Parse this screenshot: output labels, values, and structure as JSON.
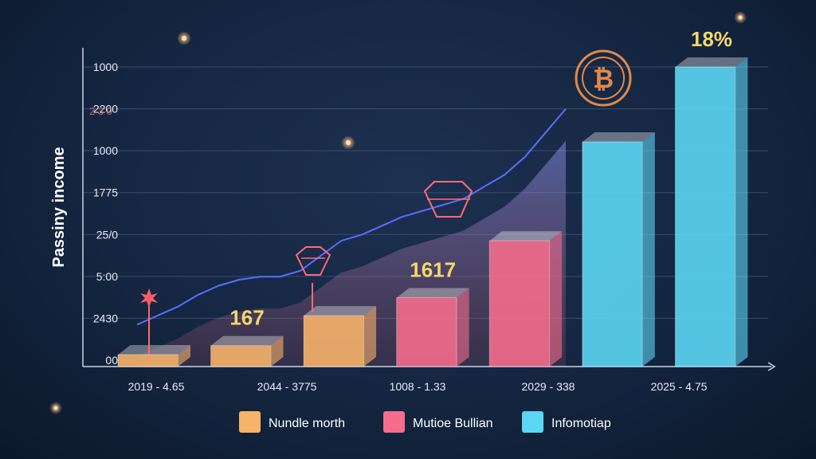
{
  "chart_data": {
    "type": "bar",
    "ylabel": "Passiny income",
    "y_ticks": [
      "1000",
      "2200",
      "1000",
      "1775",
      "25/0",
      "5:00",
      "2430",
      "00"
    ],
    "blurred_tick": "2 3 0",
    "categories": [
      "2019 - 4.65",
      "2044 - 3775",
      "1008 - 1.33",
      "2029 - 338",
      "2025 - 4.75"
    ],
    "bars": [
      {
        "series": "Nundle morth",
        "value": 0.04
      },
      {
        "series": "Nundle morth",
        "value": 0.07
      },
      {
        "series": "Nundle morth",
        "value": 0.17
      },
      {
        "series": "Mutioe Bullian",
        "value": 0.23
      },
      {
        "series": "Mutioe Bullian",
        "value": 0.42
      },
      {
        "series": "Infomotiap",
        "value": 0.75
      },
      {
        "series": "Infomotiap",
        "value": 1.0
      }
    ],
    "data_labels": [
      {
        "text": "167",
        "bar": 1
      },
      {
        "text": "1617",
        "bar": 3
      },
      {
        "text": "18%",
        "bar": 6
      }
    ],
    "trend_line": [
      0.14,
      0.17,
      0.2,
      0.24,
      0.27,
      0.29,
      0.3,
      0.3,
      0.32,
      0.37,
      0.42,
      0.44,
      0.47,
      0.5,
      0.52,
      0.54,
      0.56,
      0.6,
      0.64,
      0.7,
      0.78,
      0.86
    ],
    "legend": [
      {
        "label": "Nundle morth",
        "color": "#f7b36a"
      },
      {
        "label": "Mutioe Bullian",
        "color": "#f46d8c"
      },
      {
        "label": "Infomotiap",
        "color": "#5cd6f5"
      }
    ],
    "legend_position": "bottom",
    "grid": true,
    "icon": "bitcoin-icon",
    "colors": {
      "background": "#142640",
      "trend": "#5a6cff",
      "label": "#f5d76a",
      "grid": "#3a4d6a"
    }
  }
}
